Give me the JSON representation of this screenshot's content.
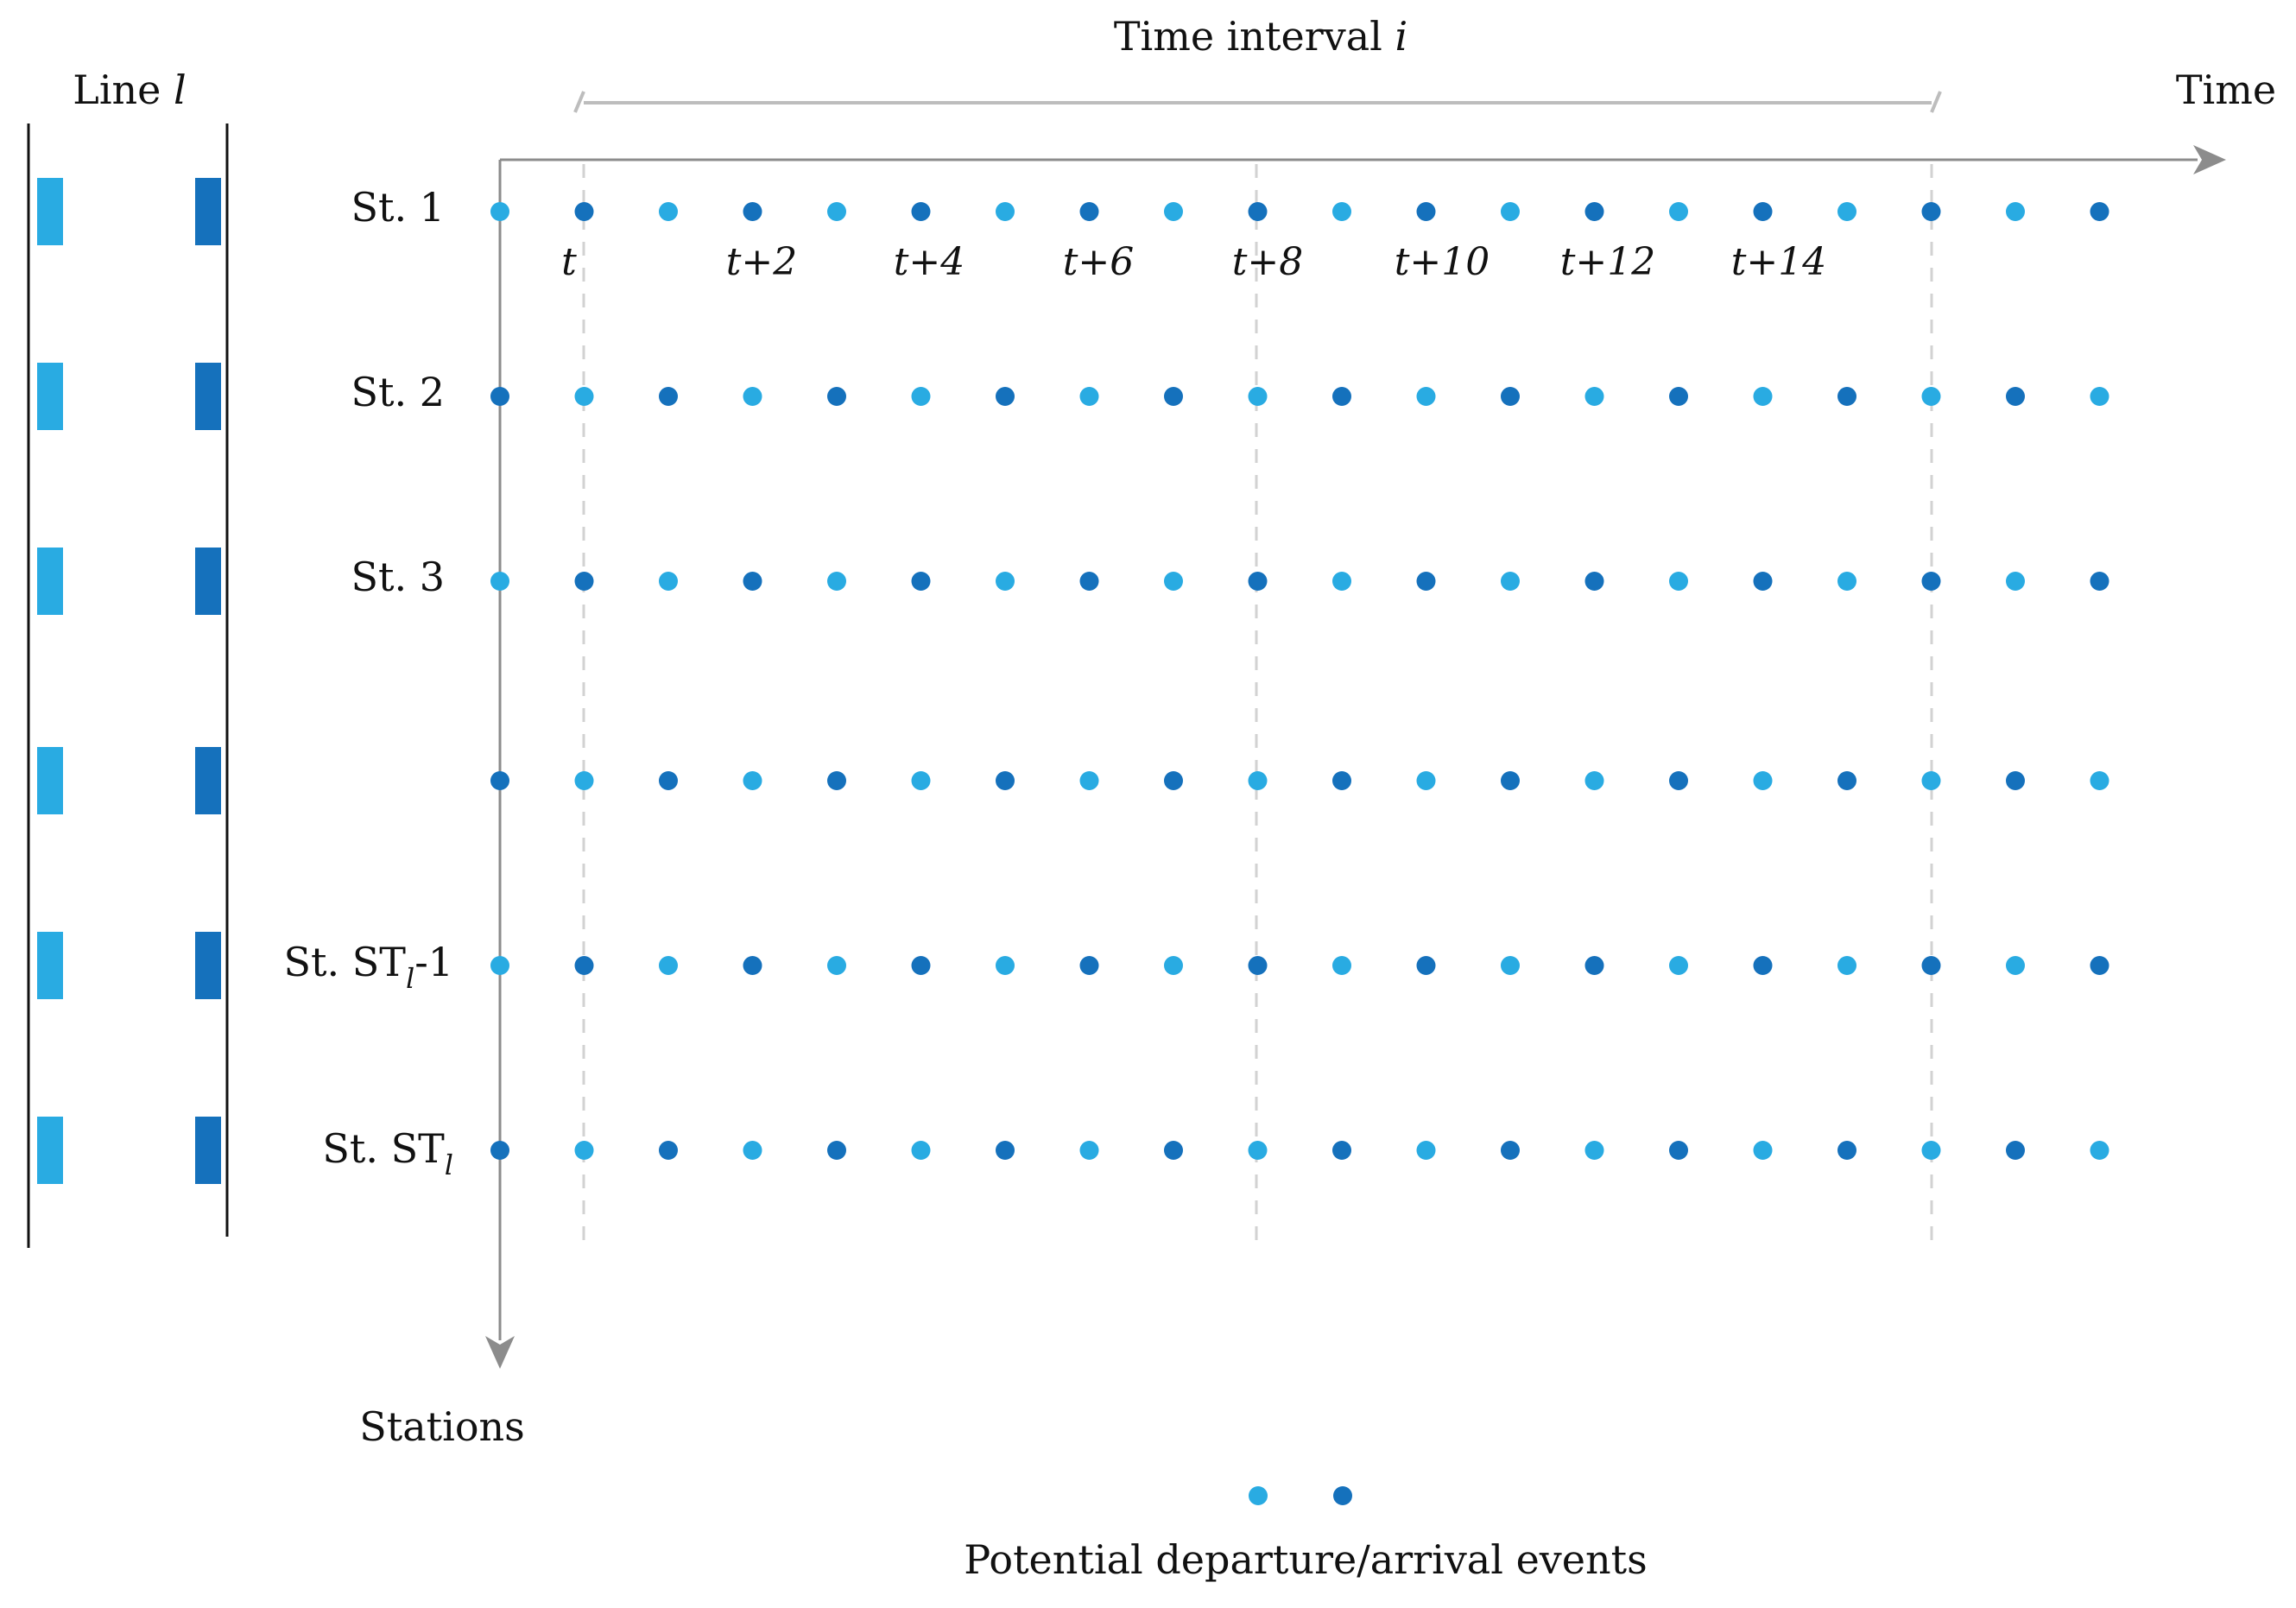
{
  "colors": {
    "light": "#29abe2",
    "dark": "#1571bc",
    "axis": "#8c8c8c",
    "guide": "#d0d0d0",
    "text": "#111111"
  },
  "line_panel": {
    "title_prefix": "Line ",
    "title_var": "l"
  },
  "axes": {
    "time_label": "Time",
    "stations_label": "Stations"
  },
  "interval": {
    "label_prefix": "Time interval ",
    "label_var": "i"
  },
  "ticks": {
    "first": "t",
    "rest": [
      "t+2",
      "t+4",
      "t+6",
      "t+8",
      "t+10",
      "t+12",
      "t+14"
    ]
  },
  "stations": [
    {
      "label": "St. 1",
      "sub": "",
      "suffix": "",
      "first_color": "light"
    },
    {
      "label": "St. 2",
      "sub": "",
      "suffix": "",
      "first_color": "dark"
    },
    {
      "label": "St. 3",
      "sub": "",
      "suffix": "",
      "first_color": "light"
    },
    {
      "label": "",
      "sub": "",
      "suffix": "",
      "first_color": "dark"
    },
    {
      "label": "St. ST",
      "sub": "l",
      "suffix": "-1",
      "first_color": "light"
    },
    {
      "label": "St. ST",
      "sub": "l",
      "suffix": "",
      "first_color": "dark"
    }
  ],
  "events_per_station": 20,
  "legend": {
    "label": "Potential departure/arrival events"
  }
}
